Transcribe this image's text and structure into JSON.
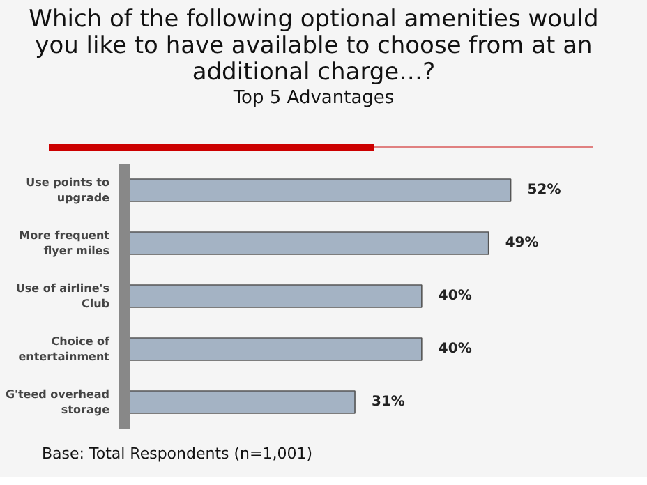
{
  "chart_data": {
    "type": "bar",
    "orientation": "horizontal",
    "title": "Which of the following optional amenities would you like to have available to choose from at an additional charge…?",
    "subtitle": "Top 5 Advantages",
    "categories": [
      "Use points to upgrade",
      "More frequent flyer miles",
      "Use of airline's Club",
      "Choice of entertainment",
      "G'teed overhead storage"
    ],
    "values": [
      52,
      49,
      40,
      40,
      31
    ],
    "value_labels": [
      "52%",
      "49%",
      "40%",
      "40%",
      "31%"
    ],
    "color": "#a4b3c4",
    "annotations": [
      "Base: Total Respondents (n=1,001)"
    ]
  }
}
